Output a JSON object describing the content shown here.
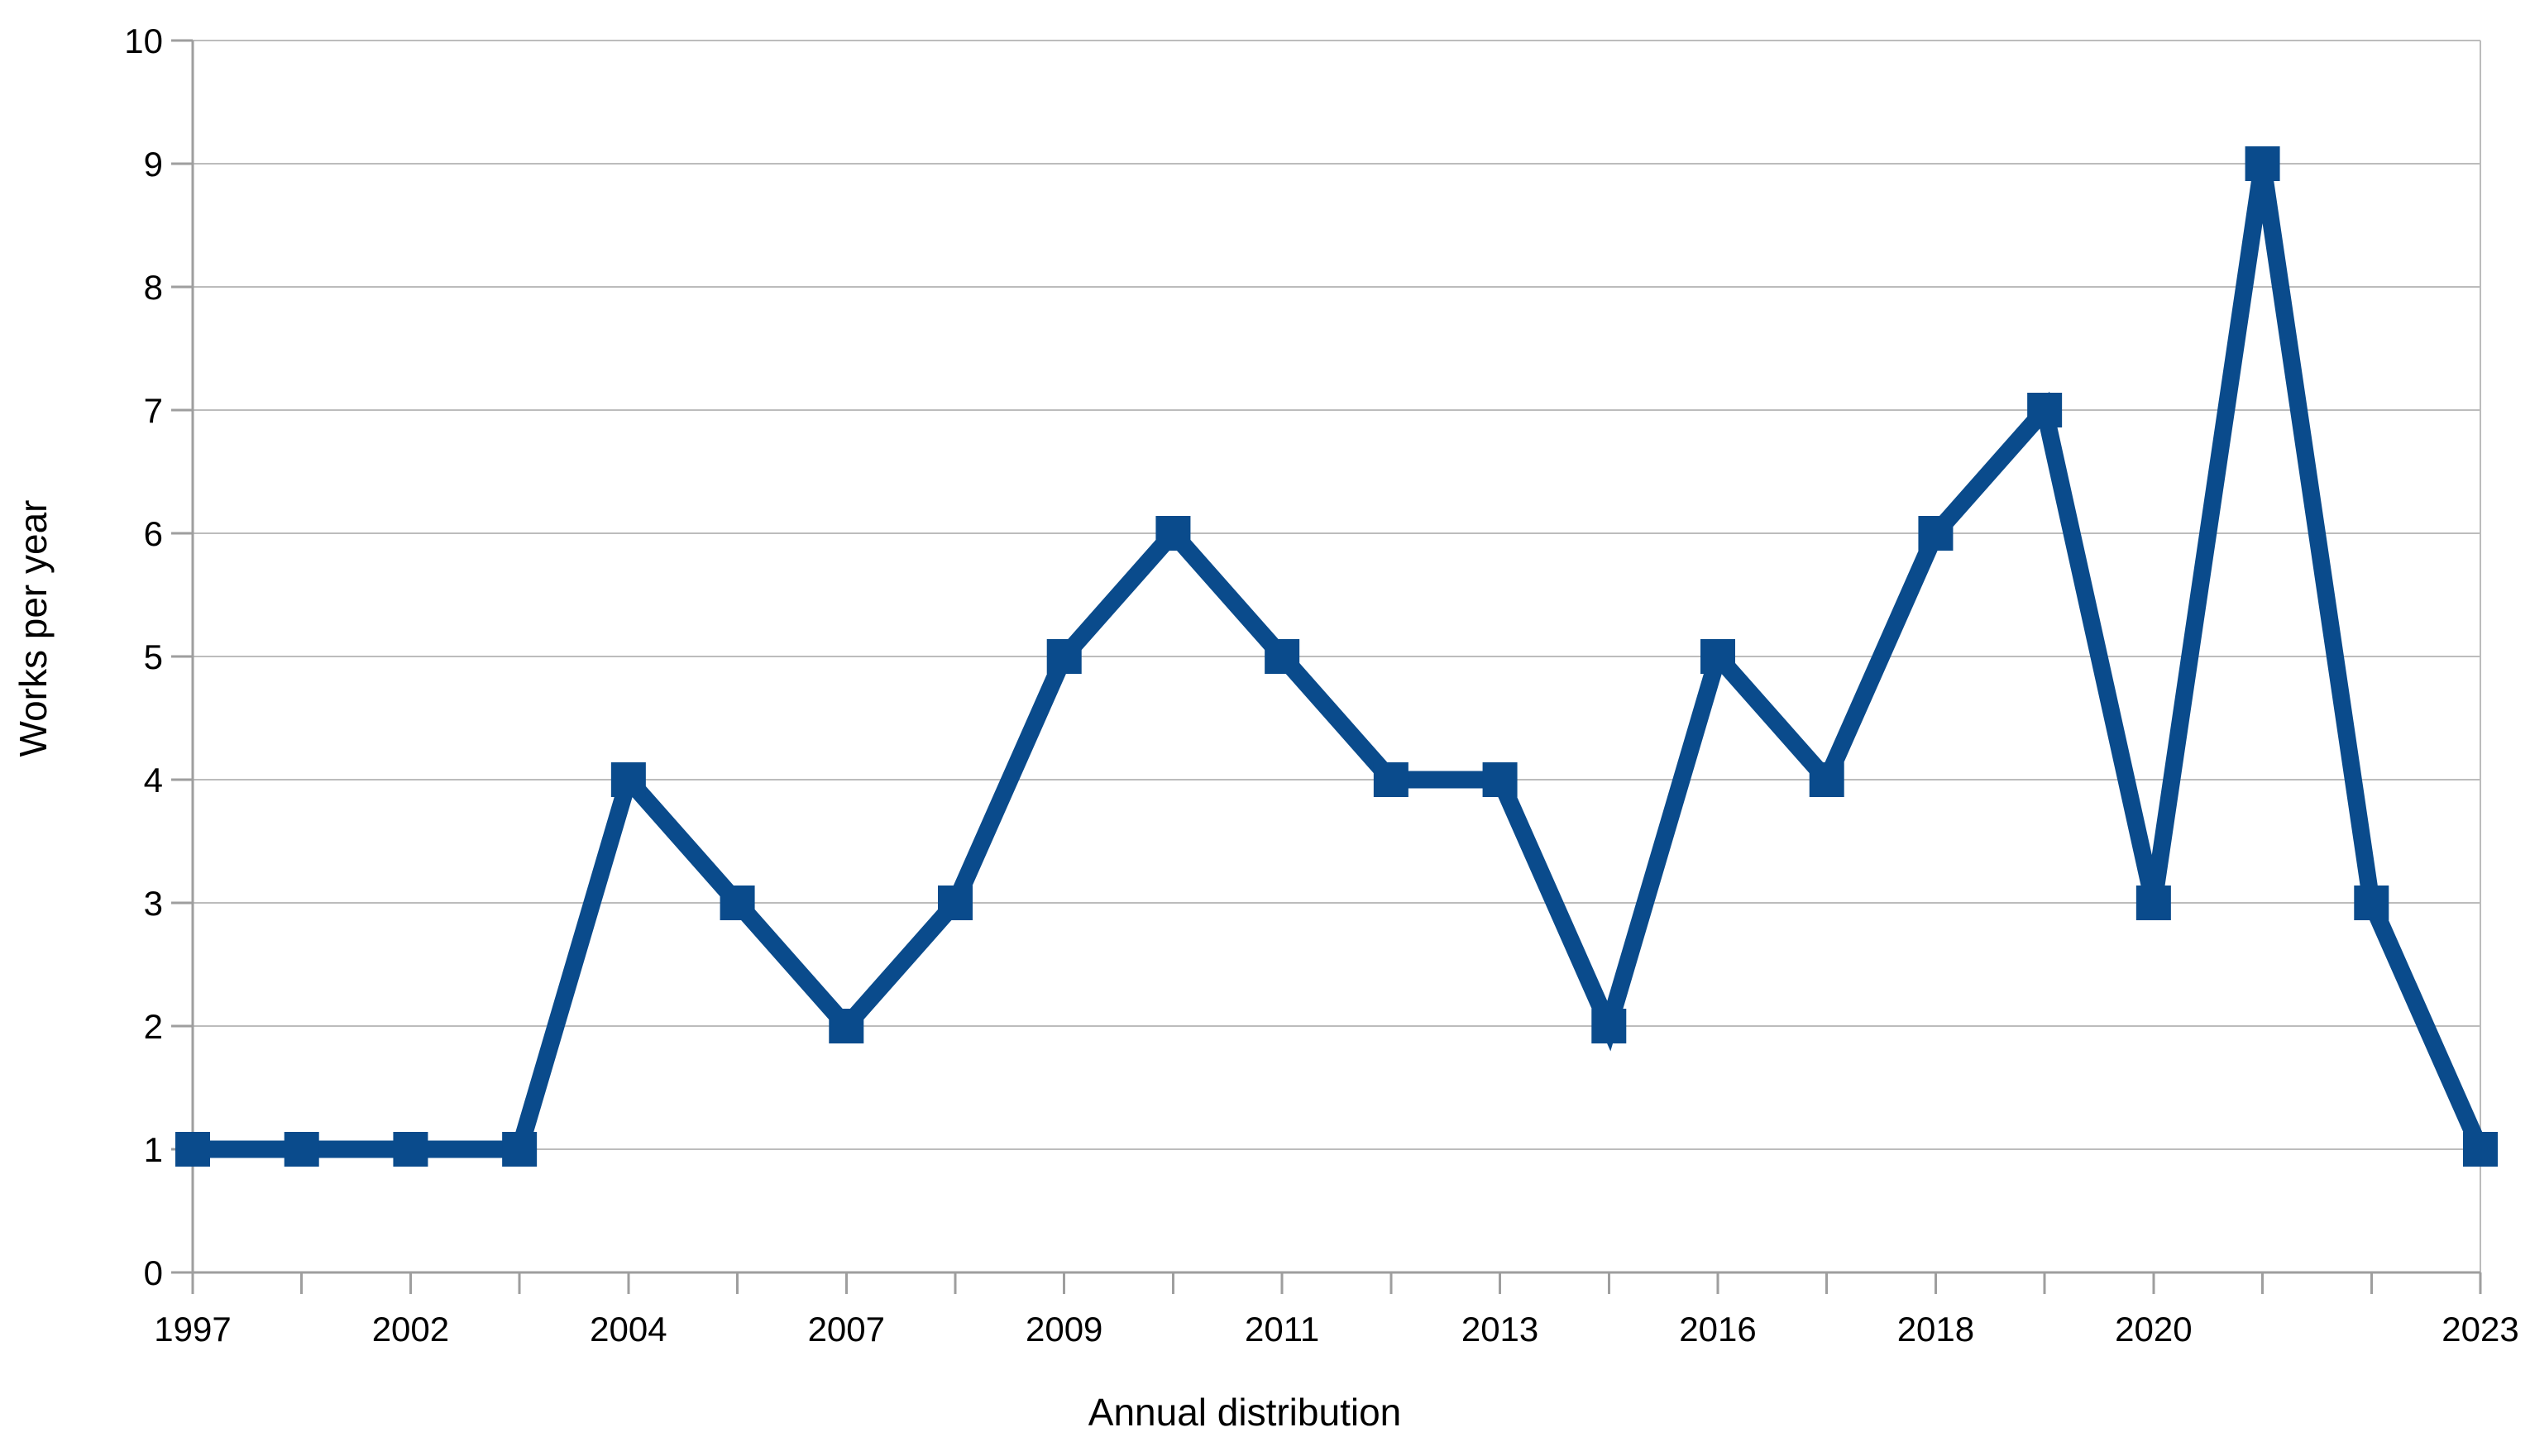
{
  "chart_data": {
    "type": "line",
    "title": "",
    "xlabel": "Annual distribution",
    "ylabel": "Works per year",
    "x_tick_labels": [
      "1997",
      "",
      "2002",
      "",
      "2004",
      "",
      "2007",
      "",
      "2009",
      "",
      "2011",
      "",
      "2013",
      "",
      "2016",
      "",
      "2018",
      "",
      "2020",
      "",
      "",
      "2023"
    ],
    "values": [
      1,
      1,
      1,
      1,
      4,
      3,
      2,
      3,
      5,
      6,
      5,
      4,
      4,
      2,
      5,
      4,
      6,
      7,
      3,
      9,
      3,
      1
    ],
    "y_tick_labels": [
      "0",
      "1",
      "2",
      "3",
      "4",
      "5",
      "6",
      "7",
      "8",
      "9",
      "10"
    ],
    "ylim": [
      0,
      10
    ],
    "grid": "horizontal",
    "legend": "none",
    "marker": "square",
    "series_name": "Works per year",
    "colors": {
      "series": "#0a4b8c",
      "gridline": "#bcbcbc",
      "axis": "#9e9e9e",
      "text": "#000000",
      "background": "#ffffff"
    }
  }
}
